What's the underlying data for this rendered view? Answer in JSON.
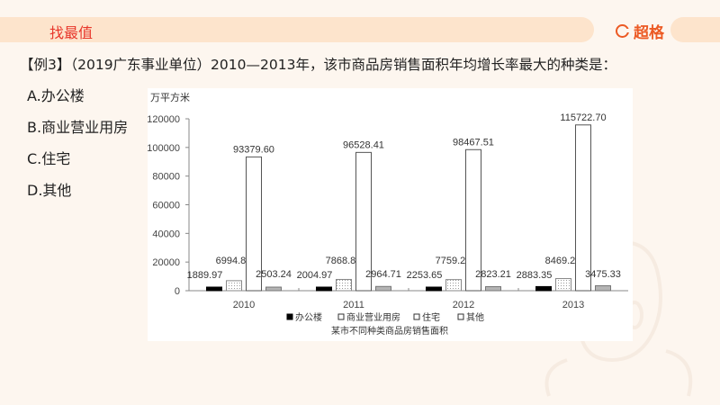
{
  "header": {
    "title": "找最值",
    "brand": "超格",
    "brand_icon": "brand-g-logo-icon"
  },
  "question": {
    "text": "【例3】（2019广东事业单位）2010—2013年，该市商品房销售面积年均增长率最大的种类是："
  },
  "options": [
    {
      "label": "A.办公楼"
    },
    {
      "label": "B.商业营业用房"
    },
    {
      "label": "C.住宅"
    },
    {
      "label": "D.其他"
    }
  ],
  "chart_data": {
    "type": "bar",
    "title": "某市不同种类商品房销售面积",
    "ylabel": "万平方米",
    "xlabel": "",
    "categories": [
      "2010",
      "2011",
      "2012",
      "2013"
    ],
    "ylim": [
      0,
      120000
    ],
    "yticks": [
      0,
      20000,
      40000,
      60000,
      80000,
      100000,
      120000
    ],
    "grid": false,
    "legend_position": "bottom",
    "series": [
      {
        "name": "办公楼",
        "color": "#000000",
        "pattern": "solid-black",
        "values": [
          1889.97,
          2004.97,
          2253.65,
          2883.35
        ],
        "labels": [
          "1889.97",
          "2004.97",
          "2253.65",
          "2883.35"
        ]
      },
      {
        "name": "商业营业用房",
        "color": "#ffffff",
        "pattern": "dotted",
        "values": [
          6994.84,
          7868.85,
          7759.28,
          8469.22
        ],
        "labels": [
          "6994.84",
          "7868.85",
          "7759.28",
          "8469.22"
        ]
      },
      {
        "name": "住宅",
        "color": "#ffffff",
        "pattern": "white",
        "values": [
          93379.6,
          96528.41,
          98467.51,
          115722.7
        ],
        "labels": [
          "93379.60",
          "96528.41",
          "98467.51",
          "115722.70"
        ]
      },
      {
        "name": "其他",
        "color": "#b0b0b0",
        "pattern": "gray",
        "values": [
          2503.24,
          2964.71,
          2823.21,
          3475.33
        ],
        "labels": [
          "2503.24",
          "2964.71",
          "2823.21",
          "3475.33"
        ]
      }
    ]
  }
}
